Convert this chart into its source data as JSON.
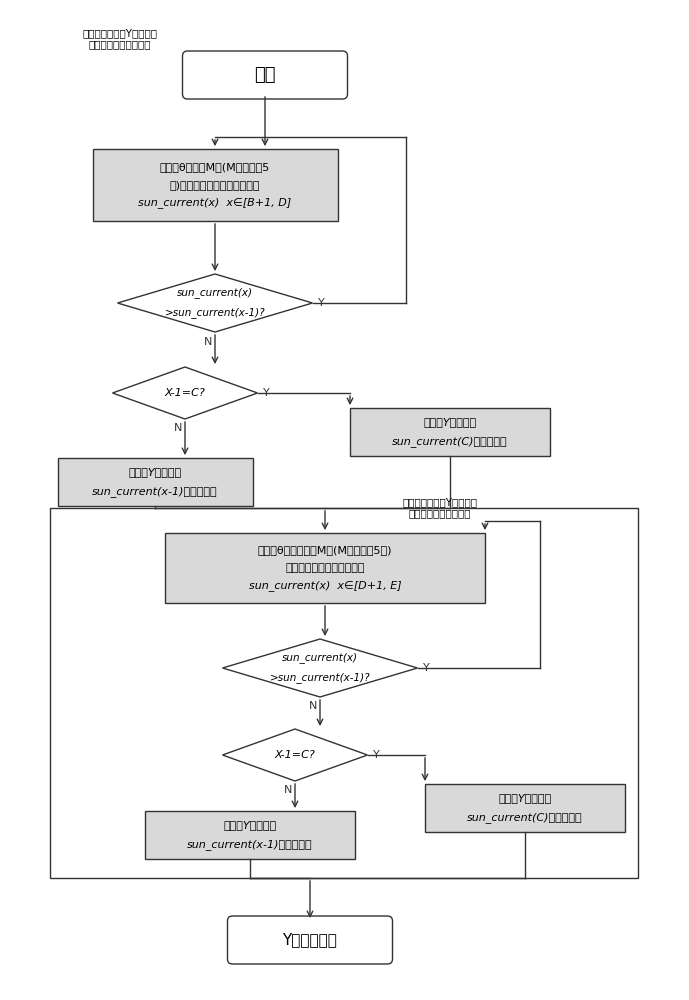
{
  "bg_color": "#ffffff",
  "line_color": "#333333",
  "box_fill": "#d9d9d9",
  "text_color": "#000000",
  "title_text": "卫星先绕星体的Y轴正向转\n动，进行快速太阳搜索",
  "start_text": "开始",
  "box1_line1": "俯仰角θ每增加M度(M可设置为5",
  "box1_line2": "度)时获取当前的太阳翼电流值",
  "box1_line3": "sun_current(x)  x∈[B+1, D]",
  "d1_line1": "sun_current(x)",
  "d1_line2": ">sun_current(x-1)?",
  "d2_text": "X-1=C?",
  "r1_line1": "卫星绕Y轴转动到",
  "r1_line2": "sun_current(x-1)对应的位置",
  "r2_line1": "卫星绕Y轴转动到",
  "r2_line2": "sun_current(C)对应的位置",
  "note_text": "卫星再绕星体的Y轴反向转\n动，进行快速太阳搜索",
  "box2_line1": "俯仰角θ负向每增加M度(M可设置为5度)",
  "box2_line2": "时获取当前的太阳翼电流值",
  "box2_line3": "sun_current(x)  x∈[D+1, E]",
  "d3_line1": "sun_current(x)",
  "d3_line2": ">sun_current(x-1)?",
  "d4_text": "X-1=C?",
  "r3_line1": "卫星绕Y轴转动到",
  "r3_line2": "sun_current(x-1)对应的位置",
  "r4_line1": "卫星绕Y轴转动到",
  "r4_line2": "sun_current(C)对应的位置",
  "end_text": "Y轴搜索结束",
  "y_label": "Y",
  "n_label": "N"
}
